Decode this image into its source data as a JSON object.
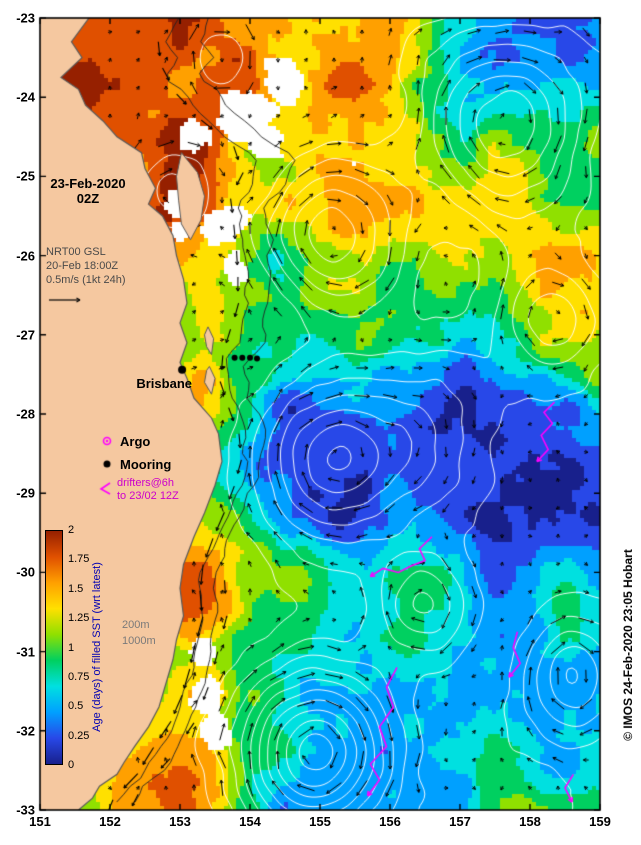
{
  "map": {
    "lon_range": [
      151,
      159
    ],
    "lat_range": [
      -33,
      -23
    ],
    "x_tick_labels": [
      "151",
      "152",
      "153",
      "154",
      "155",
      "156",
      "157",
      "158",
      "159"
    ],
    "y_tick_labels": [
      "-23",
      "-24",
      "-25",
      "-26",
      "-27",
      "-28",
      "-29",
      "-30",
      "-31",
      "-32",
      "-33"
    ]
  },
  "annotations": {
    "datetime_line1": "23-Feb-2020",
    "datetime_line2": "02Z",
    "model_line1": "NRT00 GSL",
    "model_line2": "20-Feb 18:00Z",
    "model_line3": "0.5m/s (1kt 24h)",
    "city": "Brisbane",
    "depth_200": "200m",
    "depth_1000": "1000m",
    "copyright": "© IMOS 24-Feb-2020 23:05 Hobart"
  },
  "legend": {
    "argo": "Argo",
    "mooring": "Mooring",
    "drifters_line1": "drifters@6h",
    "drifters_line2": "to 23/02 12Z"
  },
  "colorbar": {
    "label": "Age (days) of filled SST (wrt latest)",
    "min": 0,
    "max": 2,
    "tick_labels": [
      "2",
      "1.75",
      "1.5",
      "1.25",
      "1",
      "0.75",
      "0.5",
      "0.25",
      "0"
    ],
    "palette_bottom_to_top": [
      "#18208c",
      "#2848e8",
      "#00a0ff",
      "#00e0e0",
      "#00d060",
      "#90e000",
      "#ffe000",
      "#ffa000",
      "#e05000",
      "#962000"
    ]
  },
  "colors": {
    "land": "#f5c8a0",
    "coastline": "#5a5a5a",
    "contour": "#ffffff",
    "vector": "#000000",
    "drifter": "#ff00ff",
    "no_data": "#ffffff"
  },
  "markers": {
    "brisbane": {
      "lon": 153.03,
      "lat": -27.44
    },
    "moorings": [
      [
        153.78,
        -27.29
      ],
      [
        153.89,
        -27.29
      ],
      [
        154.0,
        -27.29
      ],
      [
        154.1,
        -27.3
      ]
    ]
  }
}
